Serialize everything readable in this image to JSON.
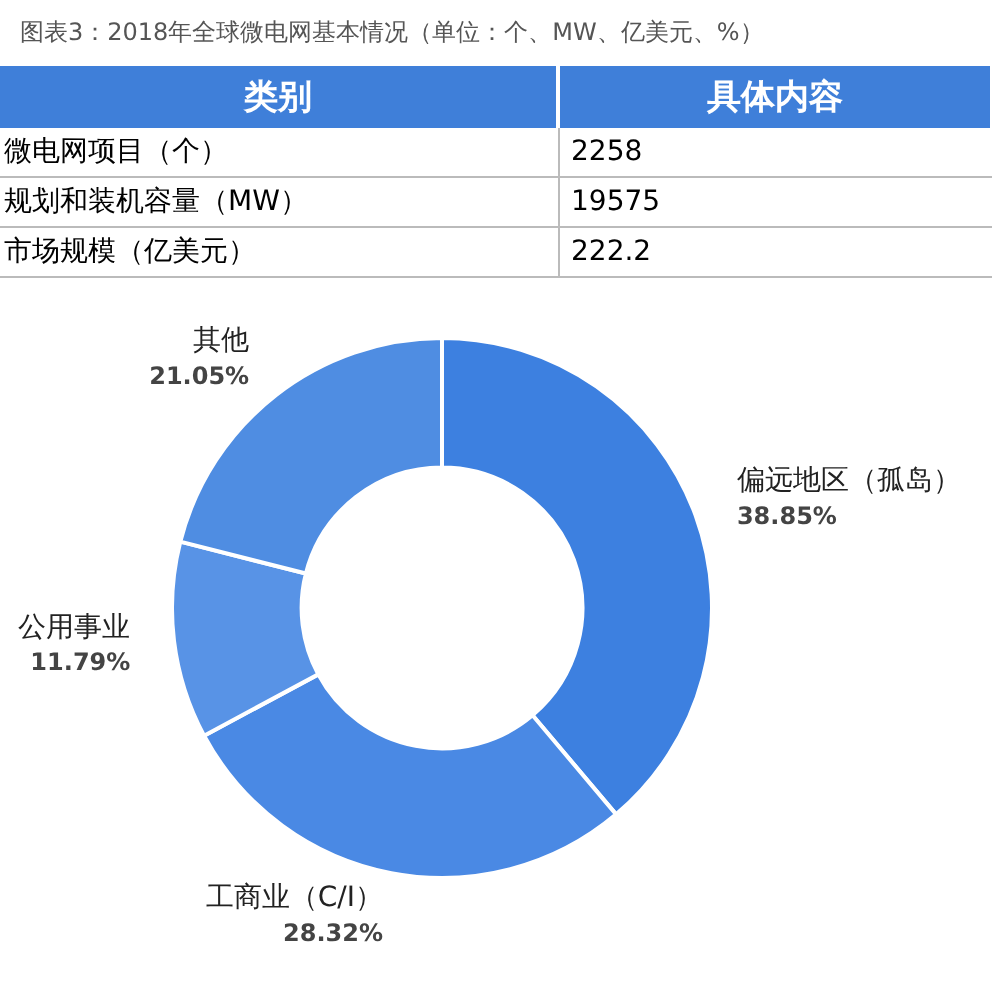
{
  "chart_data": [
    {
      "type": "other",
      "title": "图表3：2018年全球微电网基本情况（单位：个、MW、亿美元、%）",
      "annotations": [
        "类别",
        "具体内容"
      ],
      "categories": [
        "微电网项目（个）",
        "规划和装机容量（MW）",
        "市场规模（亿美元）"
      ],
      "values": [
        2258,
        19575,
        222.2
      ],
      "data_labels": true
    },
    {
      "type": "donut",
      "categories": [
        "偏远地区（孤岛）",
        "工商业（C/I）",
        "公用事业",
        "其他"
      ],
      "values": [
        38.85,
        28.32,
        11.79,
        21.05
      ],
      "value_labels": [
        "38.85%",
        "28.32%",
        "11.79%",
        "21.05%"
      ],
      "colors": [
        "#3d80e0",
        "#4a89e4",
        "#5893e6",
        "#4f8de2"
      ]
    }
  ]
}
